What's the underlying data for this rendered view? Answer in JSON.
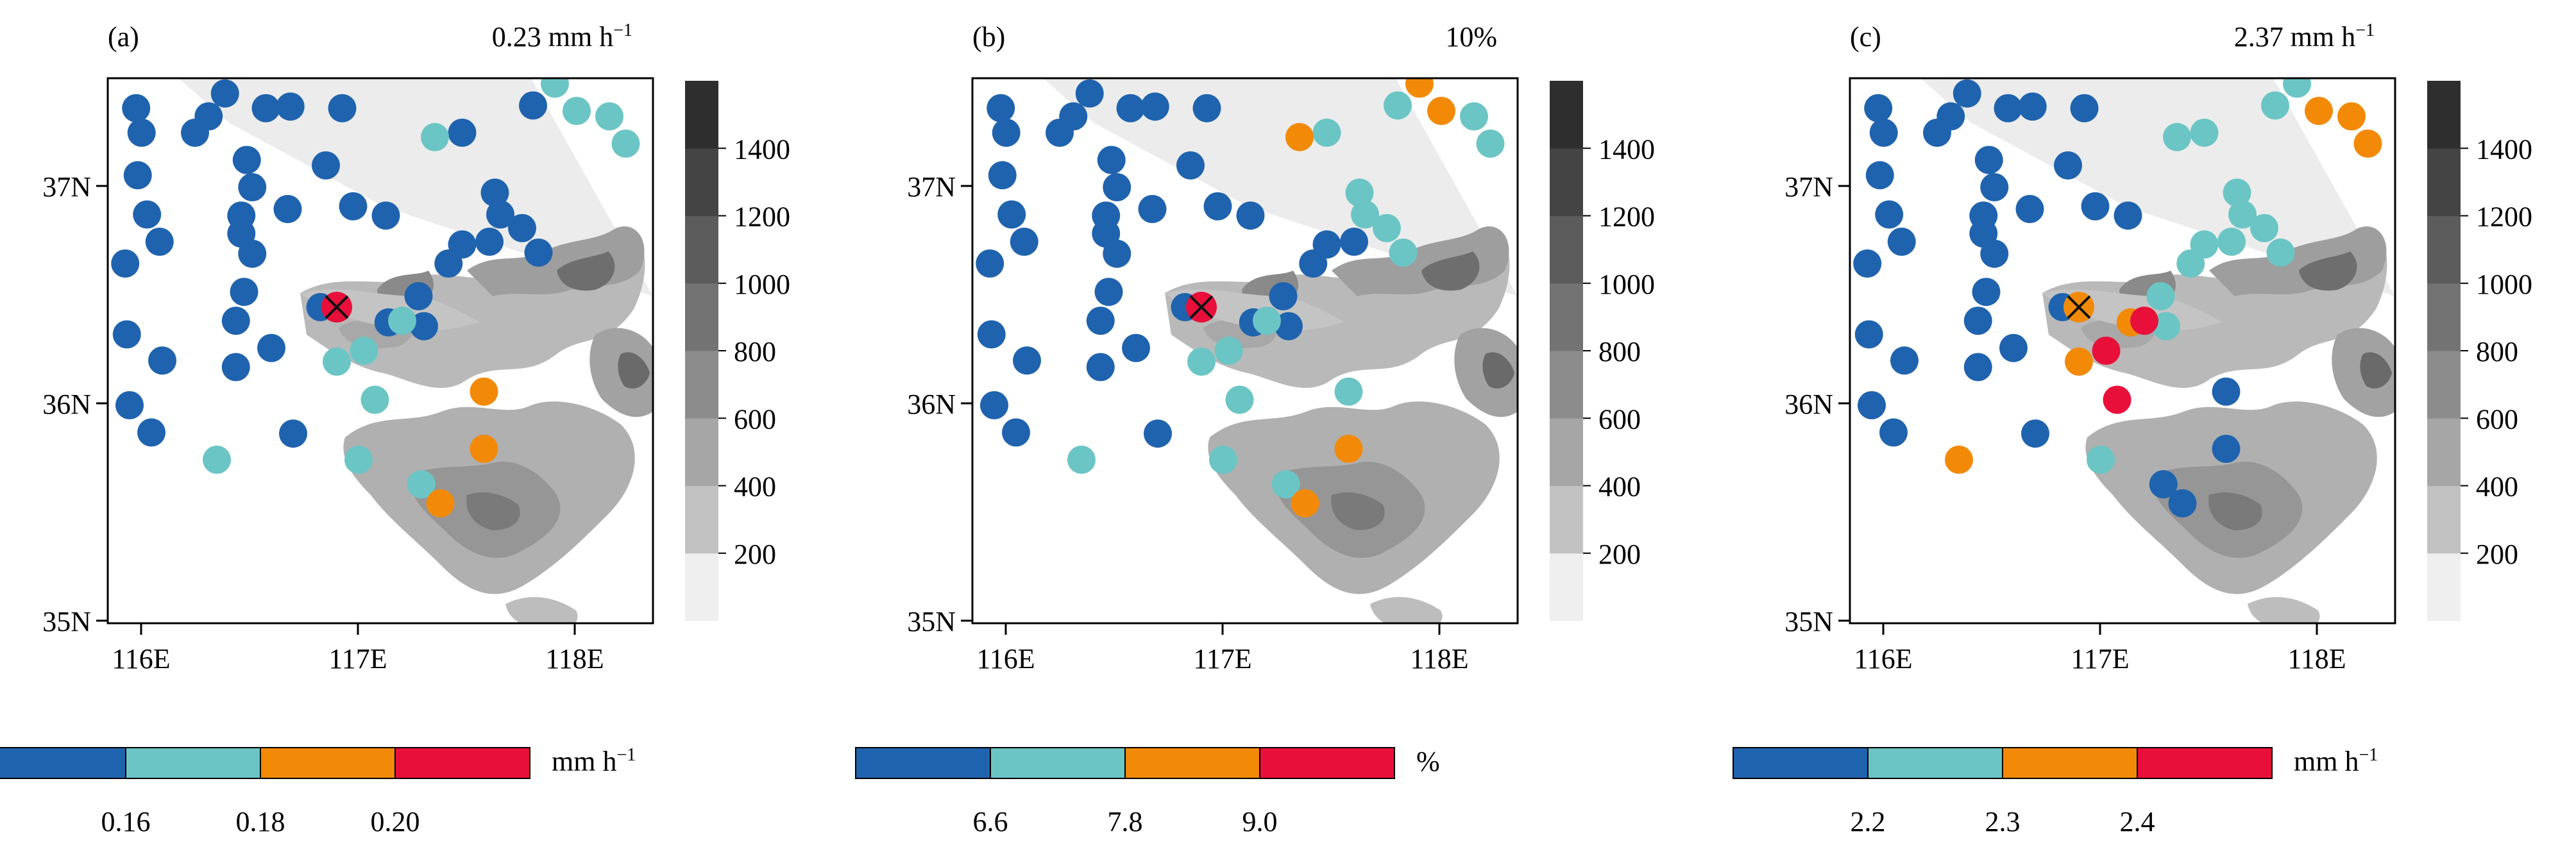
{
  "panels": [
    {
      "label": "(a)",
      "value_text": "0.23 mm h",
      "value_sup": "−1",
      "center_color": "#e8103a",
      "colorbar": {
        "unit": "mm h",
        "unit_sup": "−1",
        "ticks": [
          "0.16",
          "0.18",
          "0.20"
        ],
        "colors": [
          "#1f63ae",
          "#6cc5c5",
          "#f28a08",
          "#e8103a"
        ]
      },
      "stations": [
        "DB",
        "DB",
        "DB",
        "DB",
        "DB",
        "DB",
        "DB",
        "DB",
        "DB",
        "DB",
        "DB",
        "DB",
        "DB",
        "DB",
        "DB",
        "DB",
        "DB",
        "DB",
        "DB",
        "DB",
        "DB",
        "DB",
        "DB",
        "DB",
        "DB",
        "DB",
        "DB",
        "DB",
        "DB",
        "DB",
        "DB",
        "DB",
        "DB",
        "DB",
        "DB",
        "DB",
        "DB",
        "DB",
        "DB",
        "DB",
        "DB",
        "DB",
        "DB",
        "T",
        "T",
        "T",
        "T",
        "T",
        "T",
        "T",
        "T",
        "T",
        "T",
        "T",
        "T",
        "O",
        "O",
        "O"
      ]
    },
    {
      "label": "(b)",
      "value_text": "10%",
      "value_sup": "",
      "center_color": "#e8103a",
      "colorbar": {
        "unit": "%",
        "unit_sup": "",
        "ticks": [
          "6.6",
          "7.8",
          "9.0"
        ],
        "colors": [
          "#1f63ae",
          "#6cc5c5",
          "#f28a08",
          "#e8103a"
        ]
      },
      "stations": [
        "DB",
        "DB",
        "DB",
        "DB",
        "DB",
        "DB",
        "DB",
        "DB",
        "DB",
        "DB",
        "DB",
        "DB",
        "DB",
        "DB",
        "DB",
        "DB",
        "DB",
        "DB",
        "DB",
        "DB",
        "DB",
        "DB",
        "DB",
        "DB",
        "DB",
        "DB",
        "DB",
        "DB",
        "DB",
        "DB",
        "DB",
        "DB",
        "DB",
        "DB",
        "DB",
        "DB",
        "DB",
        "T",
        "T",
        "T",
        "T",
        "T",
        "T",
        "O",
        "O",
        "O",
        "T",
        "T",
        "T",
        "T",
        "T",
        "T",
        "T",
        "T",
        "T",
        "T",
        "O",
        "O"
      ]
    },
    {
      "label": "(c)",
      "value_text": "2.37 mm h",
      "value_sup": "−1",
      "center_color": "#f28a08",
      "colorbar": {
        "unit": "mm h",
        "unit_sup": "−1",
        "ticks": [
          "2.2",
          "2.3",
          "2.4"
        ],
        "colors": [
          "#1f63ae",
          "#6cc5c5",
          "#f28a08",
          "#e8103a"
        ]
      },
      "stations": [
        "DB",
        "DB",
        "DB",
        "DB",
        "DB",
        "DB",
        "DB",
        "DB",
        "DB",
        "DB",
        "DB",
        "DB",
        "DB",
        "DB",
        "DB",
        "DB",
        "DB",
        "DB",
        "DB",
        "DB",
        "DB",
        "DB",
        "DB",
        "DB",
        "DB",
        "DB",
        "DB",
        "DB",
        "DB",
        "DB",
        "DB",
        "O",
        "T",
        "T",
        "T",
        "T",
        "T",
        "T",
        "T",
        "T",
        "T",
        "T",
        "T",
        "T",
        "T",
        "O",
        "O",
        "O",
        "O",
        "O",
        "R",
        "R",
        "R",
        "T",
        "DB",
        "DB",
        "DB",
        "DB"
      ]
    }
  ],
  "map": {
    "x_ticks": [
      "116E",
      "117E",
      "118E"
    ],
    "y_ticks": [
      "37N",
      "36N",
      "35N"
    ]
  },
  "elevation_bar": {
    "ticks": [
      "200",
      "400",
      "600",
      "800",
      "1000",
      "1200",
      "1400"
    ],
    "colors": [
      "#efefef",
      "#c2c2c2",
      "#a6a6a6",
      "#8c8c8c",
      "#737373",
      "#5c5c5c",
      "#444444",
      "#2e2e2e"
    ]
  },
  "station_colors": {
    "DB": "#1f63ae",
    "T": "#6cc5c5",
    "O": "#f28a08",
    "R": "#e8103a"
  }
}
